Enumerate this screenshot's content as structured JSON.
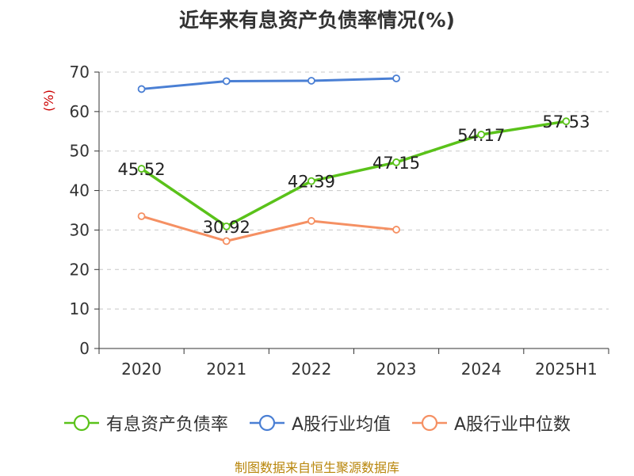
{
  "title": "近年来有息资产负债率情况(%)",
  "source": "制图数据来自恒生聚源数据库",
  "chart_data": {
    "type": "line",
    "title": "近年来有息资产负债率情况(%)",
    "ylabel": "(%)",
    "xlabel": "",
    "categories": [
      "2020",
      "2021",
      "2022",
      "2023",
      "2024",
      "2025H1"
    ],
    "ylim": [
      0,
      70
    ],
    "yticks": [
      0,
      10,
      20,
      30,
      40,
      50,
      60,
      70
    ],
    "grid": true,
    "legend_position": "bottom",
    "series": [
      {
        "name": "有息资产负债率",
        "color": "#5ac21a",
        "values": [
          45.52,
          30.92,
          42.39,
          47.15,
          54.17,
          57.53
        ],
        "labels": [
          "45.52",
          "30.92",
          "42.39",
          "47.15",
          "54.17",
          "57.53"
        ]
      },
      {
        "name": "A股行业均值",
        "color": "#4a7fd4",
        "values": [
          65.7,
          67.7,
          67.8,
          68.4,
          null,
          null
        ]
      },
      {
        "name": "A股行业中位数",
        "color": "#f59063",
        "values": [
          33.5,
          27.2,
          32.3,
          30.1,
          null,
          null
        ]
      }
    ]
  }
}
